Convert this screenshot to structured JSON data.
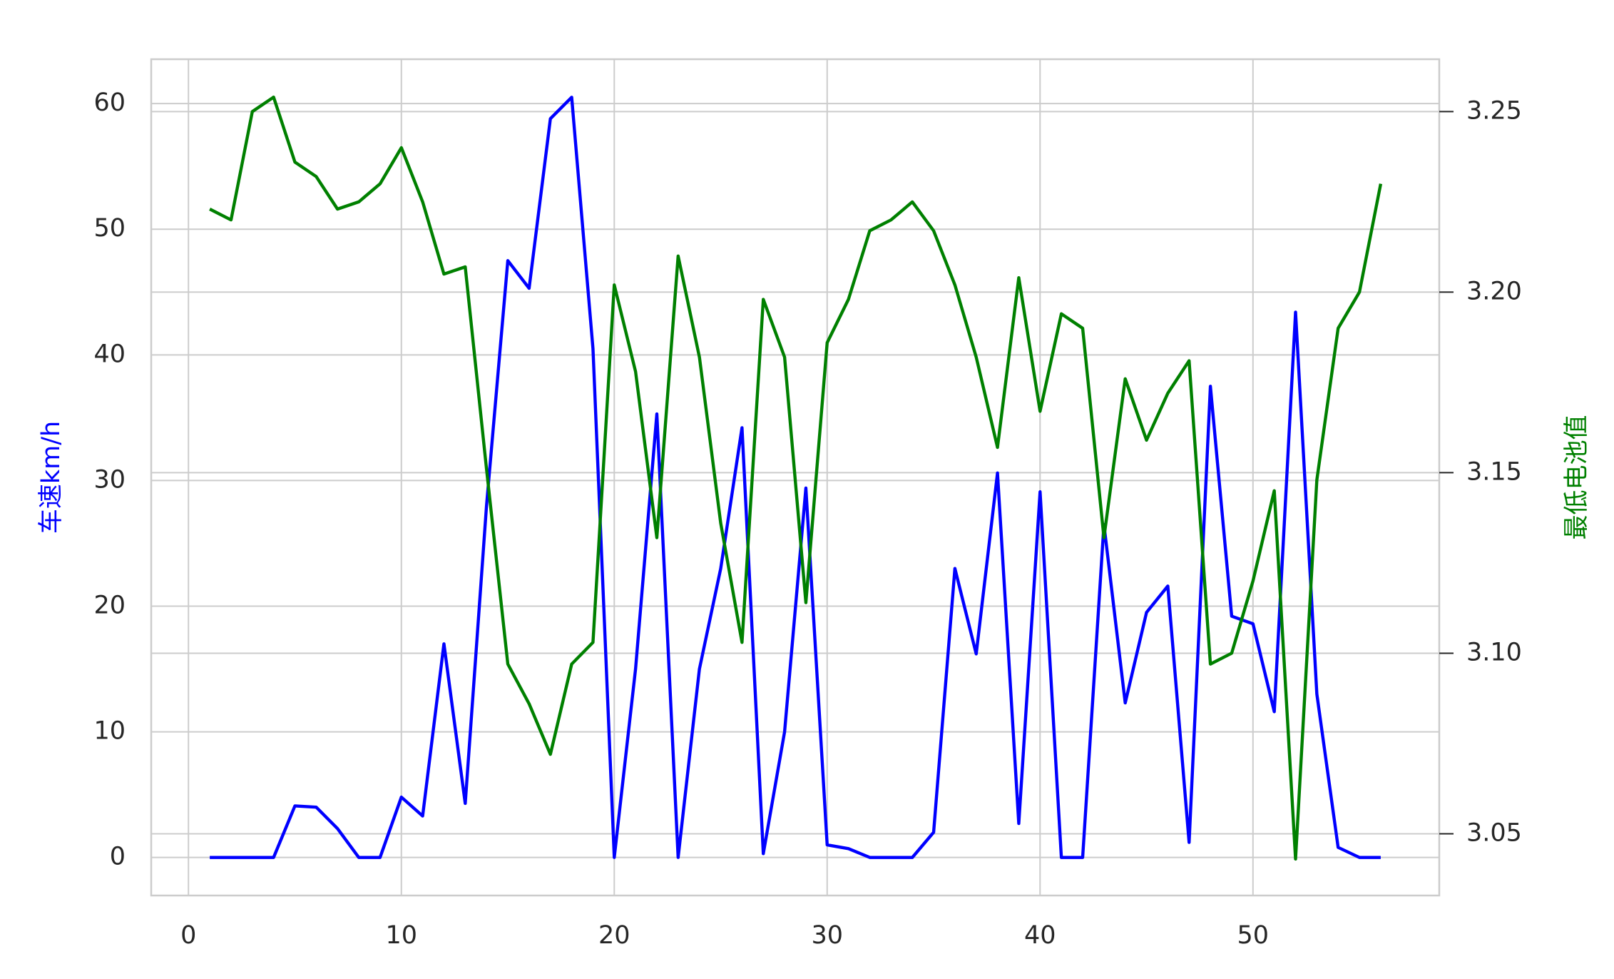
{
  "chart_data": {
    "type": "line",
    "grid": true,
    "ylabel": "车速km/h",
    "y2label": "最低电池值",
    "x": [
      1,
      2,
      3,
      4,
      5,
      6,
      7,
      8,
      9,
      10,
      11,
      12,
      13,
      14,
      15,
      16,
      17,
      18,
      19,
      20,
      21,
      22,
      23,
      24,
      25,
      26,
      27,
      28,
      29,
      30,
      31,
      32,
      33,
      34,
      35,
      36,
      37,
      38,
      39,
      40,
      41,
      42,
      43,
      44,
      45,
      46,
      47,
      48,
      49,
      50,
      51,
      52,
      53,
      54,
      55,
      56
    ],
    "series": [
      {
        "name": "车速km/h",
        "color": "#0000ff",
        "axis": "y",
        "values": [
          0,
          0,
          0,
          0,
          4.1,
          4.0,
          2.3,
          0,
          0,
          4.8,
          3.3,
          17,
          4.3,
          28,
          47.5,
          45.3,
          58.8,
          60.5,
          40.5,
          0,
          15,
          35.3,
          0,
          15,
          23,
          34.2,
          0.3,
          10,
          29.4,
          1,
          0.7,
          0,
          0,
          0,
          2,
          23,
          16.2,
          30.6,
          2.7,
          29.1,
          0,
          0,
          26.5,
          12.3,
          19.5,
          21.6,
          1.2,
          37.5,
          19.2,
          18.6,
          11.6,
          43.4,
          13,
          0.8,
          0,
          0
        ]
      },
      {
        "name": "最低电池值",
        "color": "#008000",
        "axis": "y2",
        "values": [
          3.223,
          3.22,
          3.25,
          3.254,
          3.236,
          3.232,
          3.223,
          3.225,
          3.23,
          3.24,
          3.225,
          3.205,
          3.207,
          3.151,
          3.097,
          3.086,
          3.072,
          3.097,
          3.103,
          3.202,
          3.178,
          3.132,
          3.21,
          3.182,
          3.136,
          3.103,
          3.198,
          3.182,
          3.114,
          3.186,
          3.198,
          3.217,
          3.22,
          3.225,
          3.217,
          3.202,
          3.182,
          3.157,
          3.204,
          3.167,
          3.194,
          3.19,
          3.132,
          3.176,
          3.159,
          3.172,
          3.181,
          3.097,
          3.1,
          3.12,
          3.145,
          3.043,
          3.148,
          3.19,
          3.2,
          3.23
        ]
      }
    ],
    "xlim": [
      -1.75,
      58.75
    ],
    "xticks": [
      0,
      10,
      20,
      30,
      40,
      50
    ],
    "ylim": [
      -3.03,
      63.53
    ],
    "yticks": [
      0,
      10,
      20,
      30,
      40,
      50,
      60
    ],
    "y2lim": [
      3.0329,
      3.2645
    ],
    "y2ticks": [
      3.05,
      {
        "value": 3.1,
        "label": "3.10"
      },
      3.15,
      {
        "value": 3.2,
        "label": "3.20"
      },
      3.25
    ]
  }
}
